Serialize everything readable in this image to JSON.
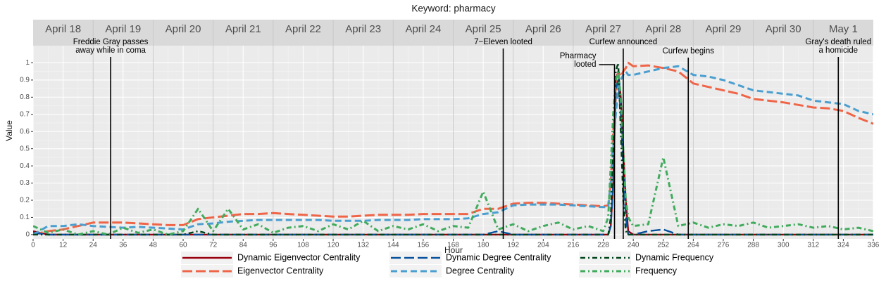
{
  "chart_data": {
    "type": "line",
    "title": "Keyword: pharmacy",
    "x_label": "Hour",
    "y_label": "Value",
    "days": [
      "April 18",
      "April 19",
      "April 20",
      "April 21",
      "April 22",
      "April 23",
      "April 24",
      "April 25",
      "April 26",
      "April 27",
      "April 28",
      "April 29",
      "April 30",
      "May 1"
    ],
    "xlim": [
      0,
      336
    ],
    "ylim": [
      -0.025,
      1.1
    ],
    "xticks": [
      0,
      12,
      24,
      36,
      48,
      60,
      72,
      84,
      96,
      108,
      120,
      132,
      144,
      156,
      168,
      180,
      192,
      204,
      216,
      228,
      240,
      252,
      264,
      276,
      288,
      300,
      312,
      324,
      336
    ],
    "yticks": [
      0,
      0.1,
      0.2,
      0.3,
      0.4,
      0.5,
      0.6,
      0.7,
      0.8,
      0.9,
      1
    ],
    "grid": true,
    "annotations": [
      {
        "x": 31,
        "lines": [
          "Freddie Gray passes",
          "away while in coma"
        ]
      },
      {
        "x": 188,
        "lines": [
          "7−Eleven looted"
        ]
      },
      {
        "x": 232.5,
        "lines": [
          "Pharmacy",
          "looted"
        ]
      },
      {
        "x": 236,
        "lines": [
          "Curfew announced"
        ]
      },
      {
        "x": 262,
        "lines": [
          "Curfew begins"
        ]
      },
      {
        "x": 322,
        "lines": [
          "Gray's death ruled",
          "a homicide"
        ]
      }
    ],
    "x": [
      0,
      6,
      12,
      18,
      24,
      30,
      36,
      42,
      48,
      54,
      60,
      66,
      72,
      78,
      84,
      90,
      96,
      102,
      108,
      114,
      120,
      126,
      132,
      138,
      144,
      150,
      156,
      162,
      168,
      174,
      180,
      186,
      192,
      198,
      204,
      210,
      216,
      222,
      228,
      230,
      231,
      232,
      233,
      234,
      235,
      236,
      237,
      238,
      240,
      246,
      252,
      258,
      264,
      270,
      276,
      282,
      288,
      294,
      300,
      306,
      312,
      318,
      324,
      330,
      336
    ],
    "series": [
      {
        "name": "Dynamic Eigenvector Centrality",
        "color": "#99000d",
        "linetype": "solid",
        "values": [
          0.02,
          0,
          0,
          0,
          0,
          0,
          0,
          0,
          0,
          0,
          0,
          0,
          0,
          0,
          0,
          0,
          0,
          0,
          0,
          0,
          0,
          0,
          0,
          0,
          0,
          0,
          0,
          0,
          0,
          0,
          0,
          0,
          0,
          0,
          0,
          0,
          0,
          0,
          0,
          0,
          0.05,
          0.3,
          0.9,
          0.95,
          0.8,
          0.5,
          0.2,
          0.02,
          0,
          0,
          0,
          0,
          0,
          0,
          0,
          0,
          0,
          0,
          0,
          0,
          0,
          0,
          0,
          0,
          0
        ]
      },
      {
        "name": "Eigenvector Centrality",
        "color": "#ef6548",
        "linetype": "longdash",
        "values": [
          0,
          0.02,
          0.03,
          0.05,
          0.07,
          0.07,
          0.07,
          0.065,
          0.06,
          0.055,
          0.055,
          0.09,
          0.1,
          0.11,
          0.12,
          0.12,
          0.125,
          0.12,
          0.115,
          0.11,
          0.105,
          0.105,
          0.11,
          0.115,
          0.115,
          0.115,
          0.12,
          0.12,
          0.12,
          0.12,
          0.15,
          0.15,
          0.18,
          0.185,
          0.185,
          0.18,
          0.175,
          0.17,
          0.165,
          0.17,
          0.3,
          0.6,
          0.8,
          0.95,
          0.92,
          0.95,
          0.97,
          1,
          0.98,
          0.985,
          0.97,
          0.95,
          0.88,
          0.86,
          0.84,
          0.82,
          0.79,
          0.78,
          0.77,
          0.755,
          0.74,
          0.735,
          0.72,
          0.68,
          0.645
        ]
      },
      {
        "name": "Dynamic Degree Centrality",
        "color": "#08519c",
        "linetype": "longdash",
        "values": [
          0.01,
          0,
          0,
          0,
          0,
          0,
          0,
          0,
          0,
          0,
          0,
          0,
          0,
          0,
          0,
          0,
          0,
          0,
          0,
          0,
          0,
          0,
          0,
          0,
          0,
          0,
          0,
          0,
          0,
          0,
          0,
          0.02,
          0,
          0,
          0,
          0,
          0,
          0,
          0,
          0,
          0.05,
          0.3,
          0.85,
          0.9,
          0.7,
          0.4,
          0.1,
          0,
          0,
          0.02,
          0.03,
          0,
          0,
          0,
          0,
          0,
          0,
          0,
          0,
          0,
          0,
          0,
          0,
          0,
          0
        ]
      },
      {
        "name": "Degree Centrality",
        "color": "#4a9fd0",
        "linetype": "dash",
        "values": [
          0,
          0.05,
          0.05,
          0.06,
          0.05,
          0.045,
          0.04,
          0.045,
          0.04,
          0.035,
          0.03,
          0.06,
          0.065,
          0.075,
          0.08,
          0.085,
          0.085,
          0.085,
          0.085,
          0.085,
          0.08,
          0.08,
          0.08,
          0.085,
          0.085,
          0.085,
          0.09,
          0.09,
          0.09,
          0.095,
          0.12,
          0.13,
          0.17,
          0.175,
          0.175,
          0.175,
          0.17,
          0.165,
          0.16,
          0.16,
          0.3,
          0.5,
          0.7,
          0.85,
          0.9,
          0.93,
          0.95,
          0.93,
          0.93,
          0.95,
          0.97,
          0.98,
          0.93,
          0.92,
          0.9,
          0.87,
          0.84,
          0.83,
          0.82,
          0.81,
          0.78,
          0.77,
          0.76,
          0.72,
          0.7
        ]
      },
      {
        "name": "Dynamic Frequency",
        "color": "#00441b",
        "linetype": "dotdash",
        "values": [
          0,
          0,
          0,
          0,
          0,
          0,
          0,
          0,
          0,
          0,
          0,
          0.02,
          0,
          0,
          0,
          0,
          0,
          0,
          0,
          0,
          0,
          0,
          0,
          0,
          0,
          0,
          0,
          0,
          0,
          0,
          0,
          0,
          0,
          0,
          0,
          0,
          0,
          0,
          0,
          0,
          0.1,
          0.5,
          0.95,
          1,
          0.6,
          0.2,
          0.02,
          0,
          0,
          0,
          0,
          0,
          0,
          0,
          0,
          0,
          0,
          0,
          0,
          0,
          0,
          0,
          0,
          0,
          0
        ]
      },
      {
        "name": "Frequency",
        "color": "#41ab5d",
        "linetype": "dotdash",
        "values": [
          0.05,
          0.01,
          0.03,
          0,
          0.02,
          0,
          0.04,
          0.01,
          0.03,
          0,
          0.02,
          0.15,
          0.02,
          0.15,
          0.03,
          0.06,
          0.01,
          0.04,
          0.05,
          0.02,
          0.06,
          0.03,
          0.08,
          0.02,
          0.05,
          0.03,
          0.06,
          0.02,
          0.05,
          0.04,
          0.25,
          0.03,
          0.06,
          0.02,
          0.05,
          0.07,
          0.03,
          0.05,
          0.02,
          0.1,
          0.4,
          0.7,
          0.9,
          0.95,
          0.8,
          0.5,
          0.2,
          0.1,
          0.05,
          0.06,
          0.45,
          0.05,
          0.07,
          0.04,
          0.06,
          0.05,
          0.07,
          0.04,
          0.05,
          0.06,
          0.04,
          0.05,
          0.03,
          0.04,
          0.02
        ]
      }
    ]
  }
}
